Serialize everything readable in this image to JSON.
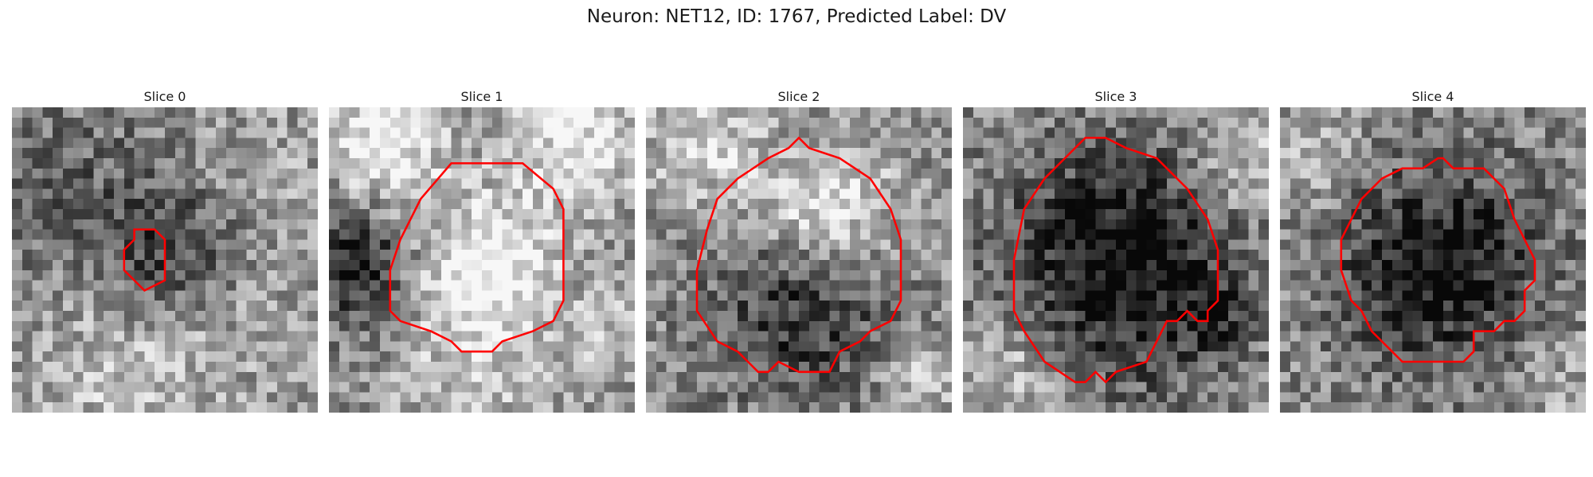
{
  "figure": {
    "title": "Neuron: NET12, ID: 1767, Predicted Label: DV"
  },
  "contour_color": "#ff0000",
  "image_grid": 30,
  "slices": [
    {
      "title": "Slice 0",
      "contour": [
        [
          12,
          12
        ],
        [
          14,
          12
        ],
        [
          15,
          13
        ],
        [
          15,
          17
        ],
        [
          13,
          18
        ],
        [
          12,
          17
        ],
        [
          11,
          16
        ],
        [
          11,
          14
        ],
        [
          12,
          13
        ]
      ],
      "blobs": [
        [
          15,
          14,
          5,
          -0.35
        ],
        [
          5,
          8,
          7,
          -0.15
        ],
        [
          24,
          6,
          6,
          0.1
        ],
        [
          10,
          25,
          7,
          0.2
        ],
        [
          20,
          20,
          6,
          0.1
        ]
      ]
    },
    {
      "title": "Slice 1",
      "contour": [
        [
          12,
          5.5
        ],
        [
          19,
          5.5
        ],
        [
          22,
          8
        ],
        [
          23,
          10
        ],
        [
          23,
          19
        ],
        [
          22,
          21
        ],
        [
          20,
          22
        ],
        [
          17,
          23
        ],
        [
          16,
          24
        ],
        [
          13,
          24
        ],
        [
          12,
          23
        ],
        [
          10,
          22
        ],
        [
          7,
          21
        ],
        [
          6,
          20
        ],
        [
          6,
          18
        ],
        [
          6,
          16
        ],
        [
          7,
          13
        ],
        [
          8,
          11
        ],
        [
          9,
          9
        ]
      ],
      "blobs": [
        [
          15,
          15,
          5,
          0.45
        ],
        [
          5,
          3,
          4,
          0.45
        ],
        [
          24,
          2,
          5,
          0.35
        ],
        [
          2,
          15,
          4,
          -0.45
        ],
        [
          14,
          26,
          6,
          0.2
        ],
        [
          28,
          22,
          3,
          0.2
        ]
      ]
    },
    {
      "title": "Slice 2",
      "contour": [
        [
          15,
          3
        ],
        [
          16,
          4
        ],
        [
          19,
          5
        ],
        [
          22,
          7
        ],
        [
          24,
          10
        ],
        [
          25,
          13
        ],
        [
          25,
          16
        ],
        [
          25,
          19
        ],
        [
          24,
          21
        ],
        [
          22,
          22
        ],
        [
          21,
          23
        ],
        [
          19,
          24
        ],
        [
          18,
          26
        ],
        [
          16,
          26
        ],
        [
          15,
          26
        ],
        [
          13,
          25
        ],
        [
          12,
          26
        ],
        [
          11,
          26
        ],
        [
          9,
          24
        ],
        [
          7,
          23
        ],
        [
          5,
          20
        ],
        [
          5,
          16
        ],
        [
          6,
          12
        ],
        [
          7,
          9
        ],
        [
          9,
          7
        ],
        [
          12,
          5
        ],
        [
          14,
          4
        ]
      ],
      "blobs": [
        [
          17,
          10,
          5,
          0.4
        ],
        [
          15,
          19,
          6,
          -0.4
        ],
        [
          5,
          3,
          4,
          0.3
        ],
        [
          26,
          26,
          3,
          0.2
        ]
      ]
    },
    {
      "title": "Slice 3",
      "contour": [
        [
          12,
          3
        ],
        [
          14,
          3
        ],
        [
          16,
          4
        ],
        [
          19,
          5
        ],
        [
          22,
          8
        ],
        [
          24,
          11
        ],
        [
          25,
          14
        ],
        [
          25,
          19
        ],
        [
          24,
          20
        ],
        [
          24,
          21
        ],
        [
          23,
          21
        ],
        [
          22,
          20
        ],
        [
          21,
          21
        ],
        [
          20,
          21
        ],
        [
          19,
          23
        ],
        [
          18,
          25
        ],
        [
          15,
          26
        ],
        [
          14,
          27
        ],
        [
          13,
          26
        ],
        [
          12,
          27
        ],
        [
          11,
          27
        ],
        [
          8,
          25
        ],
        [
          6,
          22
        ],
        [
          5,
          20
        ],
        [
          5,
          15
        ],
        [
          6,
          10
        ],
        [
          8,
          7
        ],
        [
          10,
          5
        ],
        [
          11,
          4
        ]
      ],
      "blobs": [
        [
          15,
          15,
          8,
          -0.55
        ],
        [
          5,
          25,
          4,
          0.25
        ],
        [
          27,
          5,
          4,
          0.25
        ],
        [
          24,
          20,
          2,
          -0.3
        ]
      ]
    },
    {
      "title": "Slice 4",
      "contour": [
        [
          15.5,
          5
        ],
        [
          16,
          5
        ],
        [
          17,
          6
        ],
        [
          20,
          6
        ],
        [
          21,
          7
        ],
        [
          22,
          8
        ],
        [
          23,
          11
        ],
        [
          24,
          13
        ],
        [
          25,
          15
        ],
        [
          25,
          17
        ],
        [
          24,
          18
        ],
        [
          24,
          20
        ],
        [
          23,
          21
        ],
        [
          22,
          21
        ],
        [
          21,
          22
        ],
        [
          19,
          22
        ],
        [
          19,
          24
        ],
        [
          18,
          25
        ],
        [
          16,
          25
        ],
        [
          14,
          25
        ],
        [
          12,
          25
        ],
        [
          11,
          24
        ],
        [
          9,
          22
        ],
        [
          8,
          20
        ],
        [
          7,
          19
        ],
        [
          6,
          16
        ],
        [
          6,
          13
        ],
        [
          7,
          11
        ],
        [
          8,
          9
        ],
        [
          9,
          8
        ],
        [
          10,
          7
        ],
        [
          12,
          6
        ],
        [
          14,
          6
        ]
      ],
      "blobs": [
        [
          15,
          15,
          7,
          -0.5
        ],
        [
          3,
          5,
          4,
          0.15
        ],
        [
          27,
          27,
          3,
          0.15
        ]
      ]
    }
  ]
}
